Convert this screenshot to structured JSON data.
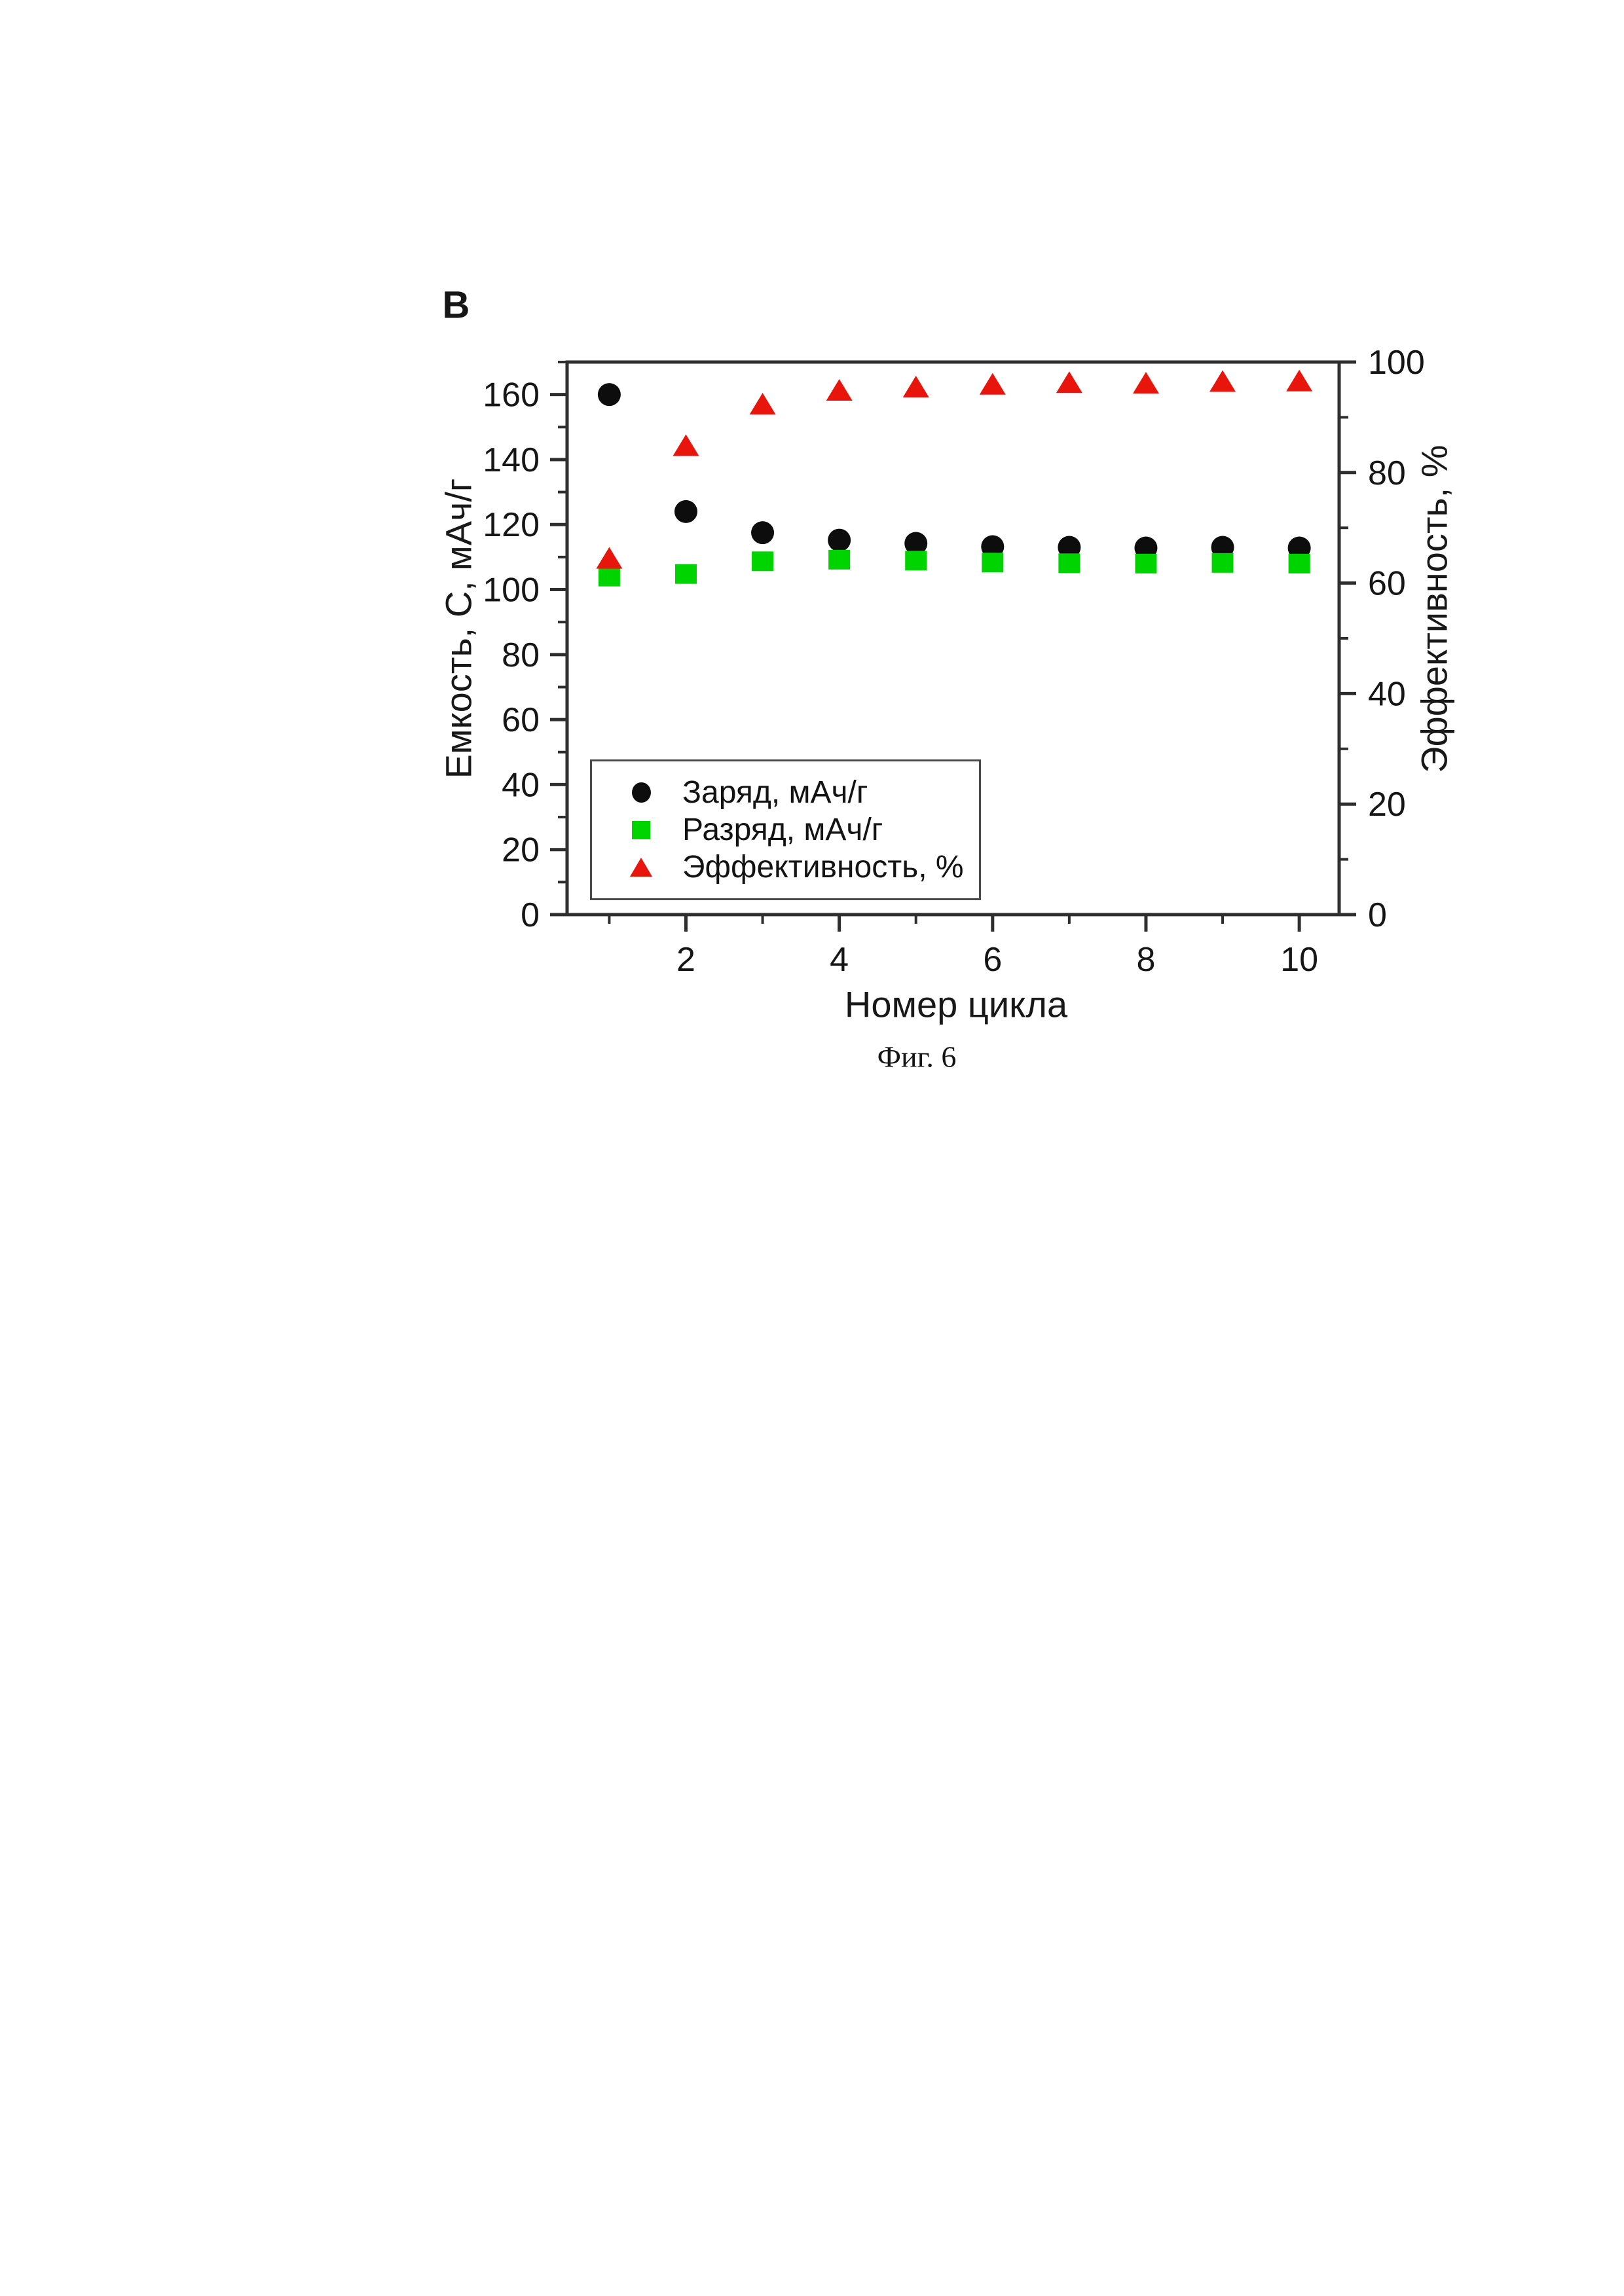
{
  "figure": {
    "panel_label": "В",
    "caption": "Фиг. 6"
  },
  "colors": {
    "background": "#ffffff",
    "axis_frame": "#2e2e2e",
    "tick_text": "#161616",
    "legend_border": "#4a4a4a",
    "charge_marker": "#0d0d0d",
    "discharge_marker": "#00d400",
    "efficiency_marker": "#e8150c"
  },
  "chart_data": {
    "type": "scatter",
    "title": "",
    "xlabel": "Номер цикла",
    "ylabel_left": "Емкость, С, мАч/г",
    "ylabel_right": "Эффективность, %",
    "x": [
      1,
      2,
      3,
      4,
      5,
      6,
      7,
      8,
      9,
      10
    ],
    "series": [
      {
        "name": "Заряд, мАч/г",
        "marker": "circle",
        "color": "#0d0d0d",
        "axis": "left",
        "values": [
          160,
          124,
          117.5,
          115.2,
          114.2,
          113.2,
          113,
          112.8,
          113,
          112.8
        ]
      },
      {
        "name": "Разряд, мАч/г",
        "marker": "square",
        "color": "#00d400",
        "axis": "left",
        "values": [
          104,
          104.8,
          108.7,
          109.2,
          108.9,
          108.3,
          108.1,
          108,
          108.2,
          108
        ]
      },
      {
        "name": "Эффективность, %",
        "marker": "triangle",
        "color": "#e8150c",
        "axis": "right",
        "values": [
          64.5,
          84.9,
          92.4,
          94.9,
          95.5,
          96,
          96.3,
          96.2,
          96.5,
          96.6
        ]
      }
    ],
    "xlim": [
      0.45,
      10.52
    ],
    "x_ticks_major": [
      2,
      4,
      6,
      8,
      10
    ],
    "x_ticks_minor": [
      1,
      3,
      5,
      7,
      9
    ],
    "ylim_left": [
      0,
      170
    ],
    "y_ticks_left_major": [
      0,
      20,
      40,
      60,
      80,
      100,
      120,
      140,
      160
    ],
    "y_ticks_left_minor": [
      10,
      30,
      50,
      70,
      90,
      110,
      130,
      150,
      170
    ],
    "ylim_right": [
      0,
      100
    ],
    "y_ticks_right_major": [
      0,
      20,
      40,
      60,
      80,
      100
    ],
    "y_ticks_right_minor": [
      10,
      30,
      50,
      70,
      90
    ],
    "grid": false,
    "legend_position": "inside lower-left",
    "frame": "full box"
  }
}
